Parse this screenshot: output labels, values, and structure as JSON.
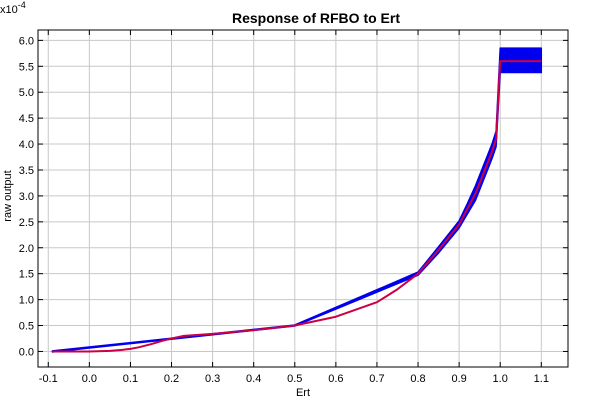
{
  "chart_data": {
    "type": "line",
    "title": "Response of RFBO to Ert",
    "xlabel": "Ert",
    "ylabel": "raw output",
    "y_multiplier": "x10",
    "y_multiplier_exp": "-4",
    "xlim": [
      -0.125,
      1.165
    ],
    "ylim": [
      -0.3,
      6.2
    ],
    "xticks": [
      -0.1,
      0.0,
      0.1,
      0.2,
      0.3,
      0.4,
      0.5,
      0.6,
      0.7,
      0.8,
      0.9,
      1.0,
      1.1
    ],
    "xtick_labels": [
      "-0.1",
      "0.0",
      "0.1",
      "0.2",
      "0.3",
      "0.4",
      "0.5",
      "0.6",
      "0.7",
      "0.8",
      "0.9",
      "1.0",
      "1.1"
    ],
    "yticks": [
      0.0,
      0.5,
      1.0,
      1.5,
      2.0,
      2.5,
      3.0,
      3.5,
      4.0,
      4.5,
      5.0,
      5.5,
      6.0
    ],
    "ytick_labels": [
      "0.0",
      "0.5",
      "1.0",
      "1.5",
      "2.0",
      "2.5",
      "3.0",
      "3.5",
      "4.0",
      "4.5",
      "5.0",
      "5.5",
      "6.0"
    ],
    "grid": true,
    "series": [
      {
        "role": "mean",
        "color": "#cc0044",
        "x": [
          -0.09,
          0.0,
          0.05,
          0.08,
          0.1,
          0.12,
          0.15,
          0.18,
          0.2,
          0.23,
          0.3,
          0.4,
          0.5,
          0.6,
          0.7,
          0.75,
          0.8,
          0.85,
          0.9,
          0.92,
          0.94,
          0.96,
          0.98,
          0.99,
          1.0,
          1.05,
          1.1
        ],
        "y": [
          0.0,
          0.0,
          0.01,
          0.03,
          0.05,
          0.08,
          0.14,
          0.21,
          0.25,
          0.3,
          0.34,
          0.41,
          0.5,
          0.67,
          0.95,
          1.2,
          1.5,
          1.96,
          2.45,
          2.75,
          3.05,
          3.45,
          3.85,
          4.1,
          5.6,
          5.6,
          5.6
        ]
      }
    ],
    "band": {
      "role": "uncertainty",
      "color": "#0000ee",
      "x": [
        -0.09,
        0.5,
        0.8,
        0.85,
        0.9,
        0.92,
        0.94,
        0.96,
        0.98,
        0.99,
        1.0,
        1.0,
        1.1
      ],
      "lower": [
        -0.01,
        0.49,
        1.47,
        1.9,
        2.38,
        2.65,
        2.92,
        3.32,
        3.72,
        3.95,
        5.38,
        5.38,
        5.38
      ],
      "upper": [
        0.01,
        0.51,
        1.53,
        2.02,
        2.52,
        2.85,
        3.2,
        3.6,
        4.0,
        4.25,
        5.85,
        5.85,
        5.85
      ]
    }
  }
}
